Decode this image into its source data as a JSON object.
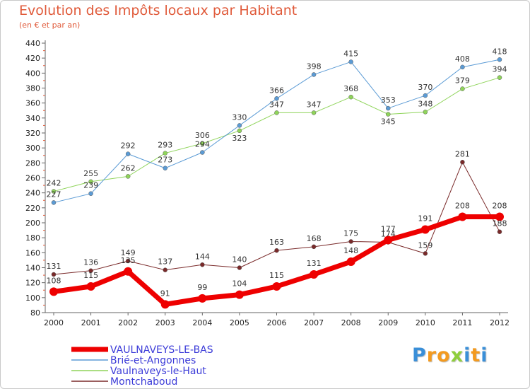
{
  "chart_data": {
    "type": "line",
    "title": "Evolution des Impôts locaux par Habitant",
    "subtitle": "(en € et par an)",
    "x": [
      "2000",
      "2001",
      "2002",
      "2003",
      "2004",
      "2005",
      "2006",
      "2007",
      "2008",
      "2009",
      "2010",
      "2011",
      "2012"
    ],
    "ylim": [
      80,
      440
    ],
    "yticks": [
      80,
      100,
      120,
      140,
      160,
      180,
      200,
      220,
      240,
      260,
      280,
      300,
      320,
      340,
      360,
      380,
      400,
      420,
      440
    ],
    "grid": false,
    "legend_position": "bottom-left",
    "series": [
      {
        "name": "VAULNAVEYS-LE-BAS",
        "color": "#ee0000",
        "values": [
          108,
          115,
          135,
          91,
          99,
          104,
          115,
          131,
          148,
          177,
          191,
          208,
          208
        ]
      },
      {
        "name": "Brié-et-Angonnes",
        "color": "#5b9bd5",
        "values": [
          227,
          239,
          292,
          273,
          294,
          330,
          366,
          398,
          415,
          353,
          370,
          408,
          418
        ]
      },
      {
        "name": "Vaulnaveys-le-Haut",
        "color": "#8fd45a",
        "values": [
          242,
          255,
          262,
          293,
          306,
          323,
          347,
          347,
          368,
          345,
          348,
          379,
          394
        ]
      },
      {
        "name": "Montchaboud",
        "color": "#7a2a2a",
        "values": [
          131,
          136,
          149,
          137,
          144,
          140,
          163,
          168,
          175,
          174,
          159,
          281,
          188
        ]
      }
    ]
  },
  "brand": {
    "logo_text": "Proxiti",
    "letter_colors": [
      "#3a8fd8",
      "#f39a1f",
      "#f39a1f",
      "#8fcf3c",
      "#3a8fd8",
      "#f39a1f",
      "#3a8fd8"
    ]
  }
}
